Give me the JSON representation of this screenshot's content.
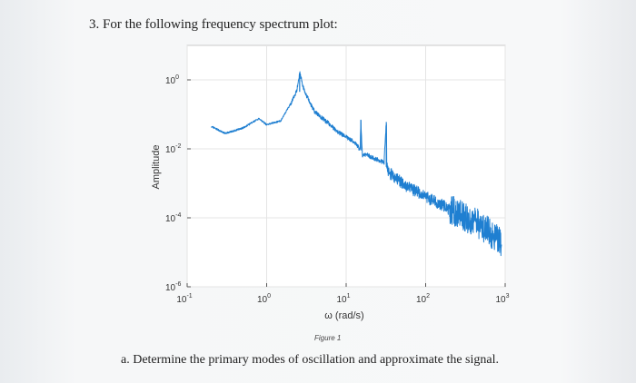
{
  "document": {
    "question": "3.  For the following frequency spectrum plot:",
    "figure_caption": "Figure 1",
    "subquestion": "a.   Determine the primary modes of oscillation and approximate the signal."
  },
  "chart_data": {
    "type": "line",
    "title": "",
    "xlabel": "ω (rad/s)",
    "ylabel": "Amplitude",
    "xscale": "log",
    "yscale": "log",
    "xlim": [
      0.1,
      1000
    ],
    "ylim": [
      1e-06,
      10
    ],
    "xticks": [
      {
        "base": "10",
        "exp": "-1",
        "value": 0.1
      },
      {
        "base": "10",
        "exp": "0",
        "value": 1
      },
      {
        "base": "10",
        "exp": "1",
        "value": 10
      },
      {
        "base": "10",
        "exp": "2",
        "value": 100
      },
      {
        "base": "10",
        "exp": "3",
        "value": 1000
      }
    ],
    "yticks": [
      {
        "base": "10",
        "exp": "0",
        "value": 1
      },
      {
        "base": "10",
        "exp": "-2",
        "value": 0.01
      },
      {
        "base": "10",
        "exp": "-4",
        "value": 0.0001
      },
      {
        "base": "10",
        "exp": "-6",
        "value": 1e-06
      }
    ],
    "grid": true,
    "color": "#1f7fd1",
    "series": [
      {
        "x": [
          0.2,
          0.3,
          0.5,
          0.8,
          1.0,
          1.5,
          2.0,
          2.4,
          2.6,
          3.0,
          4.0,
          6.0,
          8.0,
          10.0,
          12.0,
          14.0,
          15.0,
          15.3,
          16.0,
          18.0,
          20.0,
          24.0,
          30.0,
          32.0,
          32.5,
          34.0,
          40.0,
          60.0,
          100.0,
          200.0,
          500.0,
          900.0
        ],
        "y": [
          0.045,
          0.028,
          0.04,
          0.075,
          0.05,
          0.065,
          0.2,
          0.5,
          1.6,
          0.45,
          0.12,
          0.055,
          0.03,
          0.022,
          0.017,
          0.012,
          0.009,
          0.07,
          0.006,
          0.007,
          0.006,
          0.005,
          0.004,
          0.06,
          0.003,
          0.0022,
          0.0015,
          0.0008,
          0.0004,
          0.00018,
          6e-05,
          2e-05
        ]
      }
    ]
  }
}
